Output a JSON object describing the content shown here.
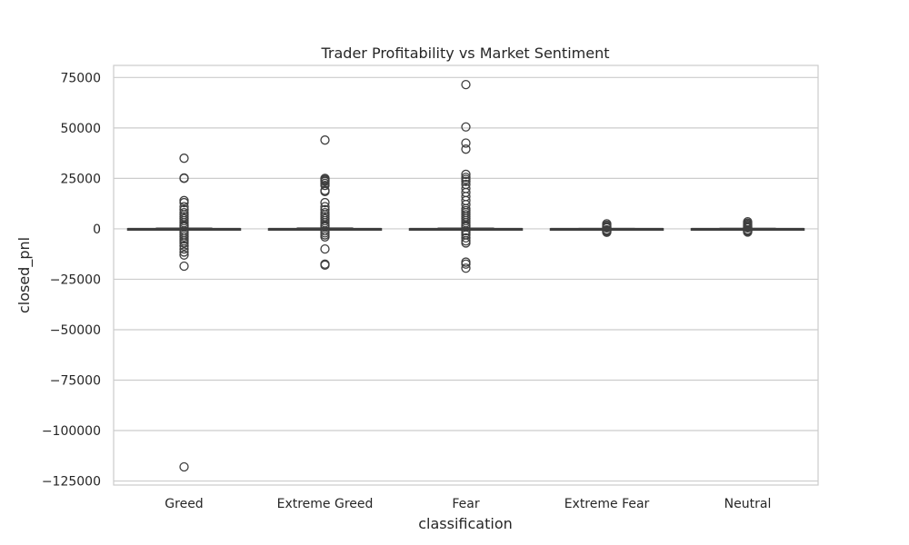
{
  "chart_data": {
    "type": "box",
    "title": "Trader Profitability vs Market Sentiment",
    "xlabel": "classification",
    "ylabel": "closed_pnl",
    "ylim": [
      -127000,
      81000
    ],
    "yticks": [
      75000,
      50000,
      25000,
      0,
      -25000,
      -50000,
      -75000,
      -100000,
      -125000
    ],
    "ytick_labels": [
      "75000",
      "50000",
      "25000",
      "0",
      "−25000",
      "−50000",
      "−75000",
      "−100000",
      "−125000"
    ],
    "grid": true,
    "colors": {
      "box_stroke": "#3f3f3f",
      "grid": "#cccccc",
      "frame": "#cccccc"
    },
    "categories": [
      "Greed",
      "Extreme Greed",
      "Fear",
      "Extreme Fear",
      "Neutral"
    ],
    "series": [
      {
        "category": "Greed",
        "whisker_low": -300,
        "q1": -10,
        "median": 0,
        "q3": 50,
        "whisker_high": 300,
        "outliers": [
          35000,
          25200,
          25000,
          14000,
          13000,
          11000,
          9500,
          8000,
          7000,
          6000,
          5000,
          4000,
          3000,
          2000,
          1500,
          1000,
          -1000,
          -2000,
          -3000,
          -4000,
          -5000,
          -6000,
          -7000,
          -8500,
          -10000,
          -11500,
          -13000,
          -18500,
          -118000
        ]
      },
      {
        "category": "Extreme Greed",
        "whisker_low": -300,
        "q1": -10,
        "median": 0,
        "q3": 60,
        "whisker_high": 350,
        "outliers": [
          44000,
          25000,
          24500,
          24000,
          23500,
          22500,
          21500,
          19000,
          18500,
          13000,
          11000,
          9500,
          8000,
          7000,
          6000,
          5000,
          4000,
          3000,
          2000,
          1500,
          1000,
          -1000,
          -2000,
          -3000,
          -4000,
          -10000,
          -17500,
          -18000
        ]
      },
      {
        "category": "Fear",
        "whisker_low": -300,
        "q1": -10,
        "median": 0,
        "q3": 50,
        "whisker_high": 300,
        "outliers": [
          71500,
          50500,
          42500,
          39500,
          27000,
          25500,
          24500,
          23500,
          22000,
          20000,
          18000,
          16000,
          14000,
          12000,
          10000,
          9000,
          8000,
          7000,
          6000,
          5000,
          4000,
          3000,
          2000,
          1500,
          1000,
          -1000,
          -2000,
          -3000,
          -4500,
          -6000,
          -7000,
          -16500,
          -17500,
          -19500
        ]
      },
      {
        "category": "Extreme Fear",
        "whisker_low": -150,
        "q1": -5,
        "median": 0,
        "q3": 30,
        "whisker_high": 150,
        "outliers": [
          2500,
          1800,
          1200,
          800,
          500,
          -500,
          -900,
          -1300,
          -1700
        ]
      },
      {
        "category": "Neutral",
        "whisker_low": -200,
        "q1": -5,
        "median": 0,
        "q3": 40,
        "whisker_high": 200,
        "outliers": [
          3500,
          2800,
          2200,
          1700,
          1200,
          800,
          500,
          -500,
          -900,
          -1300,
          -1600
        ]
      }
    ]
  }
}
